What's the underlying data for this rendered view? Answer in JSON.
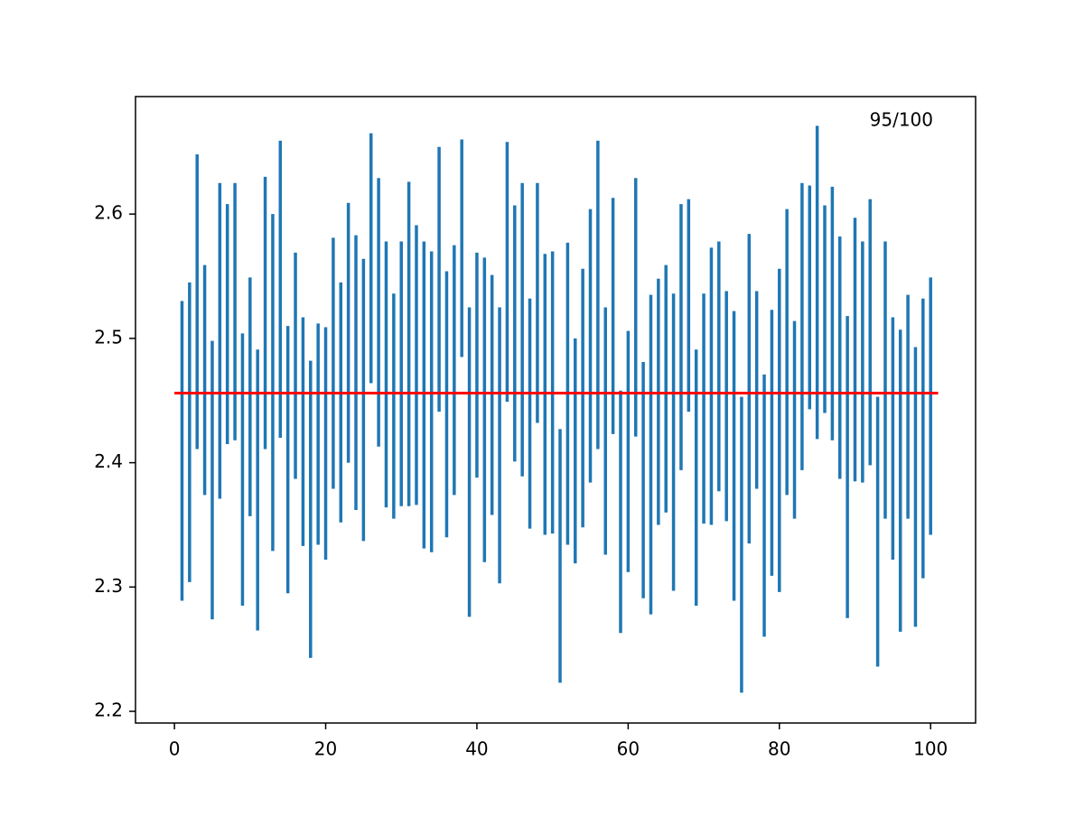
{
  "chart_data": {
    "type": "interval",
    "annotation": "95/100",
    "x": [
      1,
      2,
      3,
      4,
      5,
      6,
      7,
      8,
      9,
      10,
      11,
      12,
      13,
      14,
      15,
      16,
      17,
      18,
      19,
      20,
      21,
      22,
      23,
      24,
      25,
      26,
      27,
      28,
      29,
      30,
      31,
      32,
      33,
      34,
      35,
      36,
      37,
      38,
      39,
      40,
      41,
      42,
      43,
      44,
      45,
      46,
      47,
      48,
      49,
      50,
      51,
      52,
      53,
      54,
      55,
      56,
      57,
      58,
      59,
      60,
      61,
      62,
      63,
      64,
      65,
      66,
      67,
      68,
      69,
      70,
      71,
      72,
      73,
      74,
      75,
      76,
      77,
      78,
      79,
      80,
      81,
      82,
      83,
      84,
      85,
      86,
      87,
      88,
      89,
      90,
      91,
      92,
      93,
      94,
      95,
      96,
      97,
      98,
      99,
      100
    ],
    "series": [
      {
        "color": "#1f77b4",
        "lows": [
          2.289,
          2.304,
          2.411,
          2.374,
          2.274,
          2.371,
          2.415,
          2.418,
          2.285,
          2.357,
          2.265,
          2.411,
          2.329,
          2.42,
          2.295,
          2.387,
          2.333,
          2.243,
          2.334,
          2.322,
          2.379,
          2.352,
          2.4,
          2.362,
          2.337,
          2.464,
          2.413,
          2.364,
          2.355,
          2.365,
          2.365,
          2.366,
          2.331,
          2.328,
          2.441,
          2.34,
          2.374,
          2.485,
          2.276,
          2.388,
          2.32,
          2.358,
          2.303,
          2.449,
          2.401,
          2.389,
          2.347,
          2.432,
          2.342,
          2.343,
          2.223,
          2.334,
          2.319,
          2.348,
          2.384,
          2.411,
          2.326,
          2.423,
          2.263,
          2.312,
          2.421,
          2.291,
          2.278,
          2.35,
          2.36,
          2.297,
          2.394,
          2.441,
          2.285,
          2.351,
          2.35,
          2.377,
          2.353,
          2.289,
          2.215,
          2.335,
          2.379,
          2.26,
          2.309,
          2.296,
          2.374,
          2.355,
          2.394,
          2.443,
          2.419,
          2.44,
          2.418,
          2.387,
          2.275,
          2.385,
          2.384,
          2.398,
          2.236,
          2.355,
          2.322,
          2.264,
          2.355,
          2.268,
          2.307,
          2.342
        ],
        "highs": [
          2.53,
          2.545,
          2.648,
          2.559,
          2.498,
          2.625,
          2.608,
          2.625,
          2.504,
          2.549,
          2.491,
          2.63,
          2.6,
          2.659,
          2.51,
          2.569,
          2.517,
          2.482,
          2.512,
          2.509,
          2.581,
          2.545,
          2.609,
          2.583,
          2.564,
          2.665,
          2.629,
          2.578,
          2.536,
          2.578,
          2.626,
          2.591,
          2.578,
          2.57,
          2.654,
          2.554,
          2.575,
          2.66,
          2.525,
          2.569,
          2.565,
          2.551,
          2.525,
          2.658,
          2.607,
          2.625,
          2.532,
          2.625,
          2.568,
          2.57,
          2.427,
          2.577,
          2.5,
          2.556,
          2.604,
          2.659,
          2.525,
          2.613,
          2.458,
          2.506,
          2.629,
          2.481,
          2.535,
          2.548,
          2.559,
          2.536,
          2.608,
          2.612,
          2.491,
          2.536,
          2.573,
          2.578,
          2.538,
          2.522,
          2.453,
          2.584,
          2.538,
          2.471,
          2.523,
          2.556,
          2.604,
          2.514,
          2.625,
          2.623,
          2.671,
          2.607,
          2.622,
          2.582,
          2.518,
          2.597,
          2.578,
          2.612,
          2.453,
          2.578,
          2.517,
          2.507,
          2.535,
          2.493,
          2.532,
          2.549
        ]
      }
    ],
    "reference_line": {
      "value": 2.456,
      "x": [
        0,
        101
      ],
      "color": "red"
    },
    "xlim": [
      -5.15,
      105.95
    ],
    "ylim": [
      2.1906,
      2.6945
    ],
    "xticks": [
      0,
      20,
      40,
      60,
      80,
      100
    ],
    "yticks": [
      2.2,
      2.3,
      2.4,
      2.5,
      2.6
    ],
    "grid": false
  }
}
